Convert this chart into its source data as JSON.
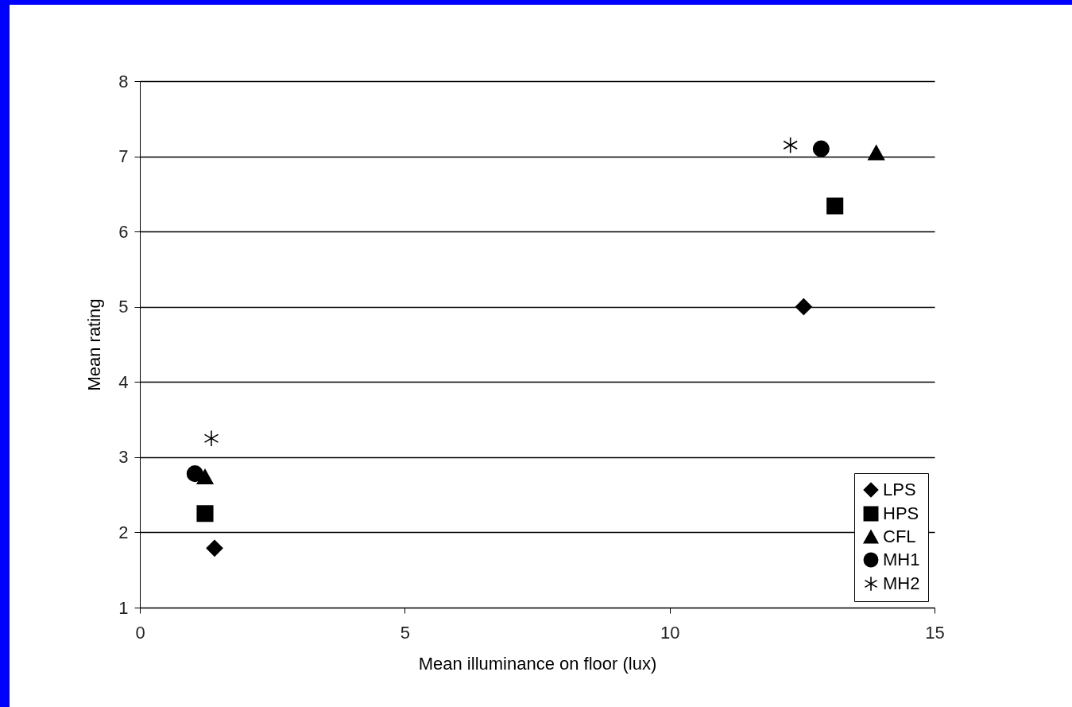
{
  "chart_data": {
    "type": "scatter",
    "xlabel": "Mean illuminance on floor (lux)",
    "ylabel": "Mean rating",
    "xlim": [
      0,
      15
    ],
    "xticks": [
      0,
      5,
      10,
      15
    ],
    "ylim": [
      1,
      8
    ],
    "yticks": [
      1,
      2,
      3,
      4,
      5,
      6,
      7,
      8
    ],
    "grid": "y",
    "legend": "bottom right",
    "series": [
      {
        "name": "LPS",
        "color": "#000000",
        "marker": "diamond",
        "x": [
          1.41,
          12.53
        ],
        "values": [
          1.79,
          5.0
        ]
      },
      {
        "name": "HPS",
        "color": "#000000",
        "marker": "square",
        "x": [
          1.23,
          13.12
        ],
        "values": [
          2.25,
          6.34
        ]
      },
      {
        "name": "CFL",
        "color": "#000000",
        "marker": "triangle",
        "x": [
          1.23,
          13.9
        ],
        "values": [
          2.74,
          7.05
        ]
      },
      {
        "name": "MH1",
        "color": "#000000",
        "marker": "circle",
        "x": [
          1.04,
          12.86
        ],
        "values": [
          2.78,
          7.1
        ]
      },
      {
        "name": "MH2",
        "color": "#000000",
        "marker": "cross",
        "x": [
          1.35,
          12.28
        ],
        "values": [
          3.25,
          7.15
        ]
      }
    ]
  }
}
